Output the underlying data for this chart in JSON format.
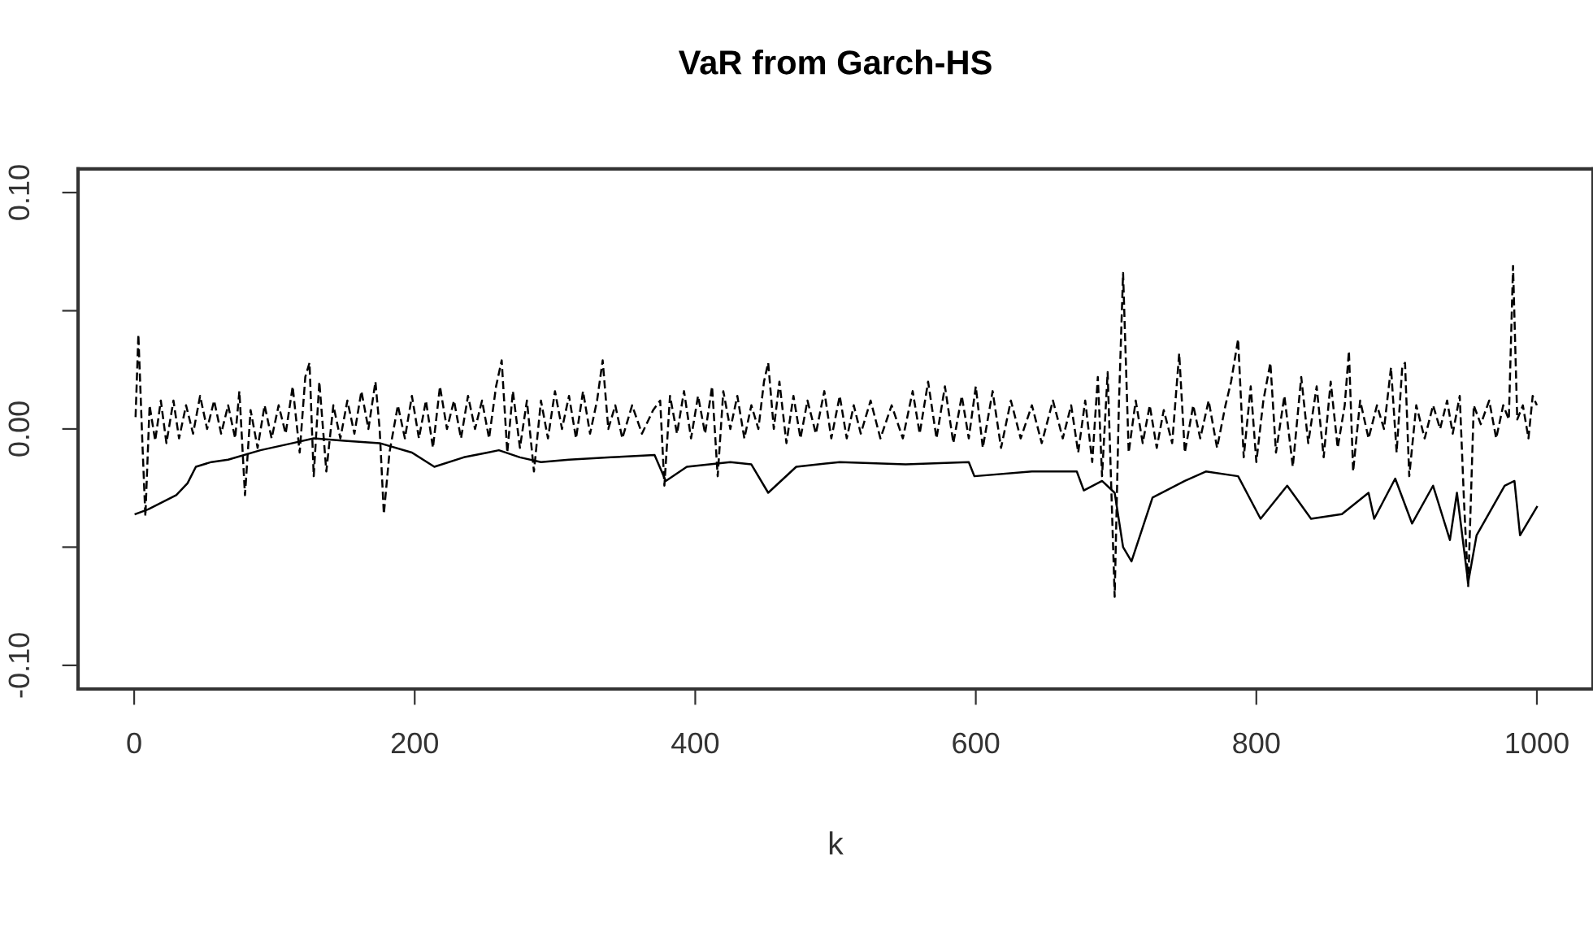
{
  "chart_data": {
    "type": "line",
    "title": "VaR from Garch-HS",
    "xlabel": "k",
    "xlim": [
      -40,
      1040
    ],
    "ylim": [
      -0.11,
      0.11
    ],
    "xticks": [
      0,
      200,
      400,
      600,
      800,
      1000
    ],
    "yticks": [
      {
        "value": -0.1,
        "label": "-0.10"
      },
      {
        "value": -0.05,
        "label": null
      },
      {
        "value": 0.0,
        "label": "0.00"
      },
      {
        "value": 0.05,
        "label": null
      },
      {
        "value": 0.1,
        "label": "0.10"
      }
    ],
    "grid": false,
    "legend": false,
    "marker": "none",
    "series": [
      {
        "color": "#000000",
        "line_style": "dashed",
        "x": [
          1,
          3,
          6,
          8,
          11,
          15,
          19,
          23,
          28,
          32,
          37,
          42,
          47,
          52,
          57,
          62,
          67,
          72,
          75,
          79,
          83,
          88,
          93,
          98,
          103,
          108,
          113,
          118,
          122,
          125,
          128,
          132,
          137,
          142,
          147,
          152,
          157,
          162,
          167,
          172,
          175,
          178,
          182,
          188,
          193,
          198,
          203,
          208,
          213,
          218,
          223,
          228,
          233,
          238,
          243,
          248,
          253,
          258,
          262,
          266,
          270,
          275,
          280,
          285,
          290,
          295,
          300,
          305,
          310,
          315,
          320,
          325,
          330,
          334,
          338,
          343,
          348,
          355,
          362,
          370,
          375,
          378,
          382,
          387,
          392,
          397,
          402,
          407,
          412,
          416,
          420,
          425,
          430,
          435,
          440,
          445,
          449,
          452,
          456,
          460,
          465,
          470,
          475,
          480,
          486,
          492,
          497,
          503,
          508,
          513,
          518,
          525,
          532,
          540,
          548,
          555,
          560,
          566,
          572,
          578,
          584,
          590,
          595,
          600,
          605,
          612,
          618,
          625,
          632,
          640,
          647,
          655,
          662,
          668,
          673,
          678,
          683,
          687,
          690,
          694,
          699,
          702,
          705,
          709,
          714,
          719,
          724,
          729,
          734,
          740,
          745,
          749,
          755,
          760,
          766,
          772,
          778,
          782,
          787,
          791,
          796,
          800,
          805,
          810,
          814,
          820,
          826,
          832,
          837,
          843,
          848,
          853,
          858,
          863,
          866,
          869,
          874,
          880,
          886,
          891,
          896,
          900,
          904,
          906,
          909,
          914,
          920,
          926,
          931,
          936,
          940,
          945,
          948,
          951,
          955,
          960,
          966,
          971,
          976,
          980,
          983,
          986,
          990,
          994,
          997,
          1000
        ],
        "values": [
          0.005,
          0.04,
          -0.008,
          -0.037,
          0.01,
          -0.005,
          0.012,
          -0.006,
          0.012,
          -0.004,
          0.01,
          -0.002,
          0.014,
          0.0,
          0.012,
          -0.002,
          0.01,
          -0.004,
          0.016,
          -0.028,
          0.008,
          -0.008,
          0.01,
          -0.004,
          0.01,
          -0.002,
          0.018,
          -0.01,
          0.022,
          0.028,
          -0.02,
          0.02,
          -0.018,
          0.01,
          -0.004,
          0.012,
          -0.002,
          0.016,
          0.0,
          0.02,
          0.0,
          -0.036,
          -0.01,
          0.01,
          -0.004,
          0.014,
          -0.004,
          0.012,
          -0.008,
          0.018,
          0.0,
          0.012,
          -0.004,
          0.014,
          0.0,
          0.012,
          -0.004,
          0.018,
          0.029,
          -0.01,
          0.016,
          -0.008,
          0.012,
          -0.018,
          0.012,
          -0.004,
          0.016,
          0.0,
          0.014,
          -0.004,
          0.016,
          -0.002,
          0.012,
          0.029,
          0.0,
          0.01,
          -0.004,
          0.01,
          -0.002,
          0.008,
          0.012,
          -0.024,
          0.014,
          -0.002,
          0.016,
          -0.004,
          0.014,
          -0.002,
          0.018,
          -0.02,
          0.016,
          0.0,
          0.014,
          -0.004,
          0.01,
          0.0,
          0.02,
          0.028,
          0.0,
          0.02,
          -0.006,
          0.014,
          -0.004,
          0.012,
          -0.002,
          0.016,
          -0.004,
          0.014,
          -0.004,
          0.01,
          -0.002,
          0.012,
          -0.004,
          0.01,
          -0.004,
          0.016,
          -0.002,
          0.02,
          -0.004,
          0.018,
          -0.006,
          0.014,
          -0.004,
          0.018,
          -0.008,
          0.016,
          -0.008,
          0.012,
          -0.004,
          0.01,
          -0.006,
          0.012,
          -0.004,
          0.01,
          -0.01,
          0.012,
          -0.014,
          0.022,
          -0.02,
          0.024,
          -0.071,
          0.01,
          0.066,
          -0.01,
          0.012,
          -0.006,
          0.01,
          -0.008,
          0.008,
          -0.006,
          0.032,
          -0.01,
          0.01,
          -0.004,
          0.012,
          -0.008,
          0.01,
          0.02,
          0.038,
          -0.012,
          0.018,
          -0.014,
          0.012,
          0.028,
          -0.01,
          0.014,
          -0.016,
          0.022,
          -0.006,
          0.018,
          -0.012,
          0.02,
          -0.008,
          0.01,
          0.033,
          -0.018,
          0.012,
          -0.004,
          0.01,
          0.0,
          0.026,
          -0.01,
          0.026,
          0.028,
          -0.02,
          0.01,
          -0.004,
          0.01,
          0.0,
          0.012,
          -0.002,
          0.014,
          -0.03,
          -0.067,
          0.01,
          0.002,
          0.012,
          -0.004,
          0.01,
          0.004,
          0.069,
          0.004,
          0.01,
          -0.004,
          0.014,
          0.01
        ]
      },
      {
        "color": "#000000",
        "line_style": "solid",
        "x": [
          1,
          10,
          20,
          30,
          38,
          44,
          55,
          67,
          90,
          113,
          128,
          150,
          175,
          198,
          214,
          235,
          252,
          260,
          275,
          290,
          310,
          340,
          371,
          379,
          394,
          425,
          440,
          452,
          472,
          503,
          550,
          595,
          599,
          640,
          657,
          672,
          677,
          690,
          699,
          705,
          711,
          726,
          749,
          764,
          787,
          803,
          822,
          839,
          861,
          880,
          884,
          899,
          911,
          926,
          938,
          943,
          951,
          957,
          977,
          984,
          988,
          1000
        ],
        "values": [
          -0.036,
          -0.034,
          -0.031,
          -0.028,
          -0.023,
          -0.016,
          -0.014,
          -0.013,
          -0.009,
          -0.006,
          -0.004,
          -0.005,
          -0.006,
          -0.01,
          -0.016,
          -0.012,
          -0.01,
          -0.009,
          -0.012,
          -0.014,
          -0.013,
          -0.012,
          -0.011,
          -0.022,
          -0.016,
          -0.014,
          -0.015,
          -0.027,
          -0.016,
          -0.014,
          -0.015,
          -0.014,
          -0.02,
          -0.018,
          -0.018,
          -0.018,
          -0.026,
          -0.022,
          -0.027,
          -0.05,
          -0.056,
          -0.029,
          -0.022,
          -0.018,
          -0.02,
          -0.038,
          -0.024,
          -0.038,
          -0.036,
          -0.027,
          -0.038,
          -0.021,
          -0.04,
          -0.024,
          -0.047,
          -0.027,
          -0.065,
          -0.045,
          -0.024,
          -0.022,
          -0.045,
          -0.033
        ]
      }
    ]
  }
}
